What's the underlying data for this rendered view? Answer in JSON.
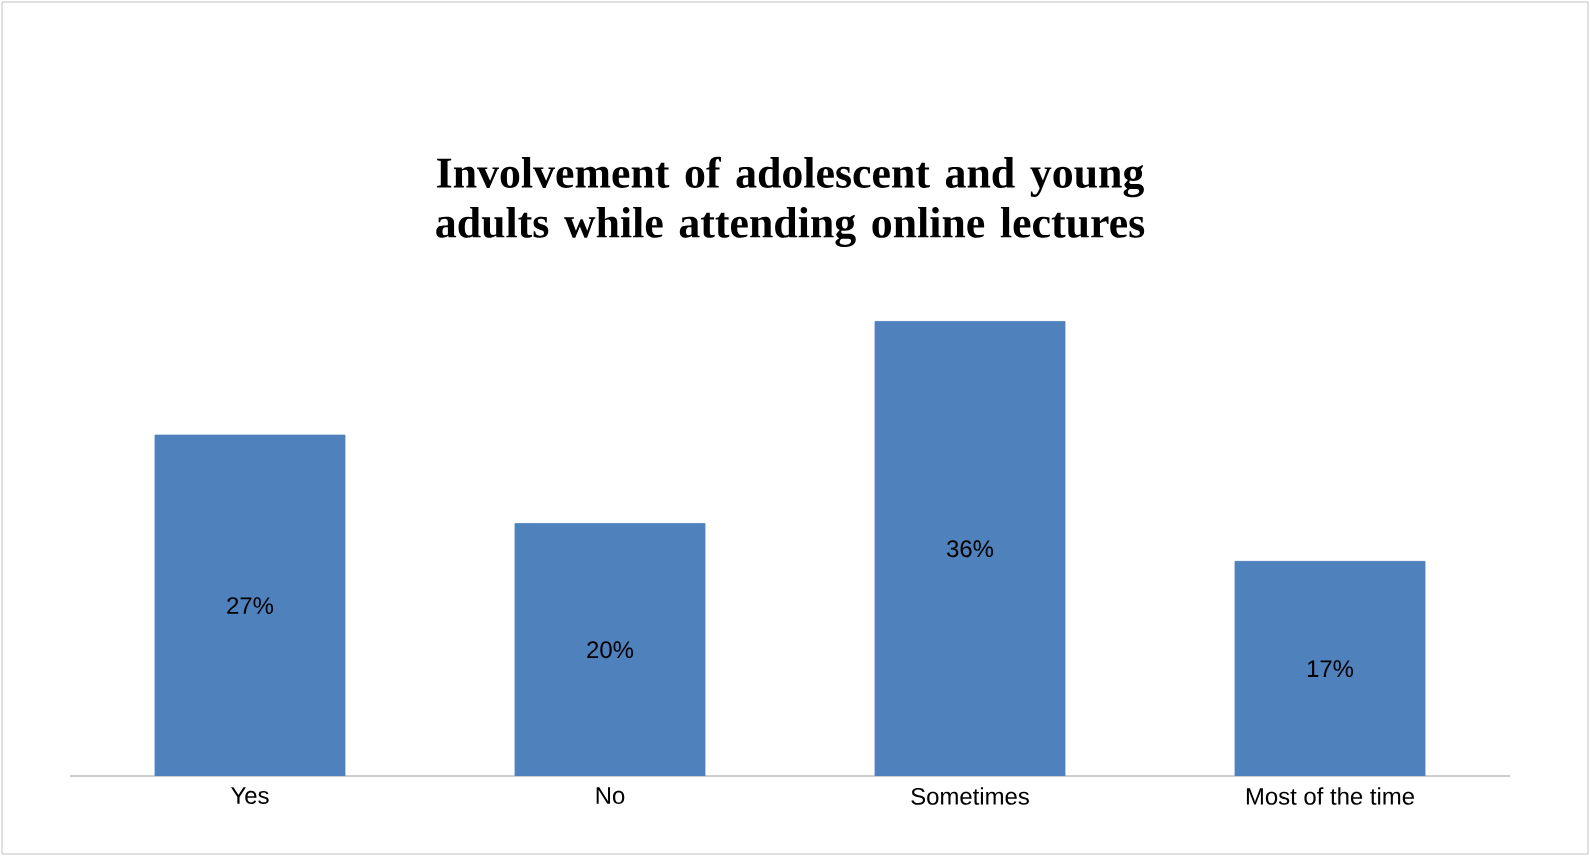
{
  "chart_data": {
    "type": "bar",
    "title": "Involvement of adolescent and young adults while attending online lectures",
    "categories": [
      "Yes",
      "No",
      "Sometimes",
      "Most of the time"
    ],
    "values": [
      27,
      20,
      36,
      17
    ],
    "value_labels": [
      "27%",
      "20%",
      "36%",
      "17%"
    ],
    "color": "#4f81bd"
  }
}
